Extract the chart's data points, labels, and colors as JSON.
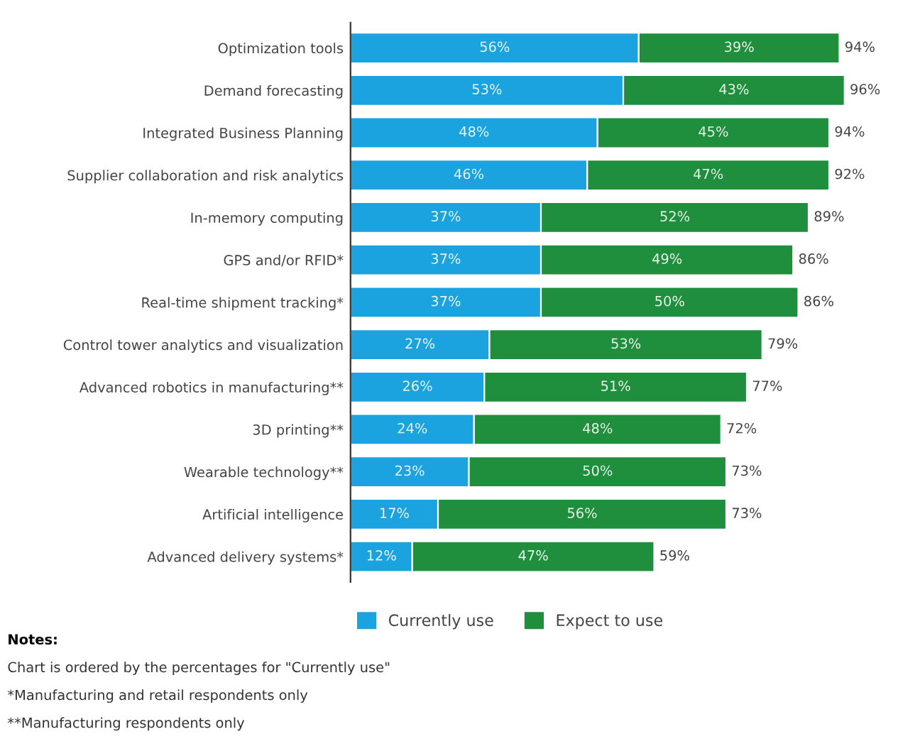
{
  "chart_data": {
    "type": "bar",
    "orientation": "horizontal",
    "stacked": true,
    "legend": "bottom",
    "grid": false,
    "categories": [
      "Optimization tools",
      "Demand forecasting",
      "Integrated Business Planning",
      "Supplier collaboration and risk analytics",
      "In-memory computing",
      "GPS and/or RFID*",
      "Real-time shipment tracking*",
      "Control tower analytics and visualization",
      "Advanced robotics in manufacturing**",
      "3D printing**",
      "Wearable technology**",
      "Artificial intelligence",
      "Advanced delivery systems*"
    ],
    "series": [
      {
        "name": "Currently use",
        "color": "#1ba3e0",
        "values": [
          56,
          53,
          48,
          46,
          37,
          37,
          37,
          27,
          26,
          24,
          23,
          17,
          12
        ],
        "value_labels": [
          "56%",
          "53%",
          "48%",
          "46%",
          "37%",
          "37%",
          "37%",
          "27%",
          "26%",
          "24%",
          "23%",
          "17%",
          "12%"
        ]
      },
      {
        "name": "Expect to use",
        "color": "#1f8f3e",
        "values": [
          39,
          43,
          45,
          47,
          52,
          49,
          50,
          53,
          51,
          48,
          50,
          56,
          47
        ],
        "value_labels": [
          "39%",
          "43%",
          "45%",
          "47%",
          "52%",
          "49%",
          "50%",
          "53%",
          "51%",
          "48%",
          "50%",
          "56%",
          "47%"
        ]
      }
    ],
    "totals": [
      "94%",
      "96%",
      "94%",
      "92%",
      "89%",
      "86%",
      "86%",
      "79%",
      "77%",
      "72%",
      "73%",
      "73%",
      "59%"
    ],
    "annotations": [
      "Notes:",
      "Chart is ordered by the percentages for \"Currently use\"",
      "*Manufacturing and retail respondents only",
      "**Manufacturing respondents only"
    ]
  }
}
